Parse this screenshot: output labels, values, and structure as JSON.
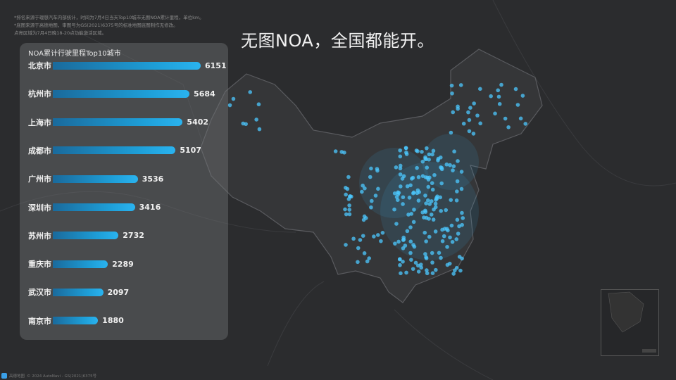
{
  "notes": [
    "*排名来源于理想汽车内部统计，时间为7月4日当天Top10城市无图NOA累计里程，单位km。",
    "*底图来源于高德地图，审图号为GS(2021)6375号的标准地图底图制作无修改。",
    "点亮区域为7月4日晚18-20点功能激活区域。"
  ],
  "headline": "无图NOA，全国都能开。",
  "chart_data": {
    "type": "bar",
    "title": "NOA累计行驶里程Top10城市",
    "categories": [
      "北京市",
      "杭州市",
      "上海市",
      "成都市",
      "广州市",
      "深圳市",
      "苏州市",
      "重庆市",
      "武汉市",
      "南京市"
    ],
    "values": [
      6151,
      5684,
      5402,
      5107,
      3536,
      3416,
      2732,
      2289,
      2097,
      1880
    ],
    "unit": "km",
    "orientation": "horizontal",
    "bar_color": "#1e9fd8"
  },
  "footer": {
    "logo_text": "高德地图",
    "copyright": "© 2024 AutoNavi - GS(2021)6375号"
  },
  "colors": {
    "background": "#2b2c2e",
    "highlight": "#4cc8ff"
  }
}
